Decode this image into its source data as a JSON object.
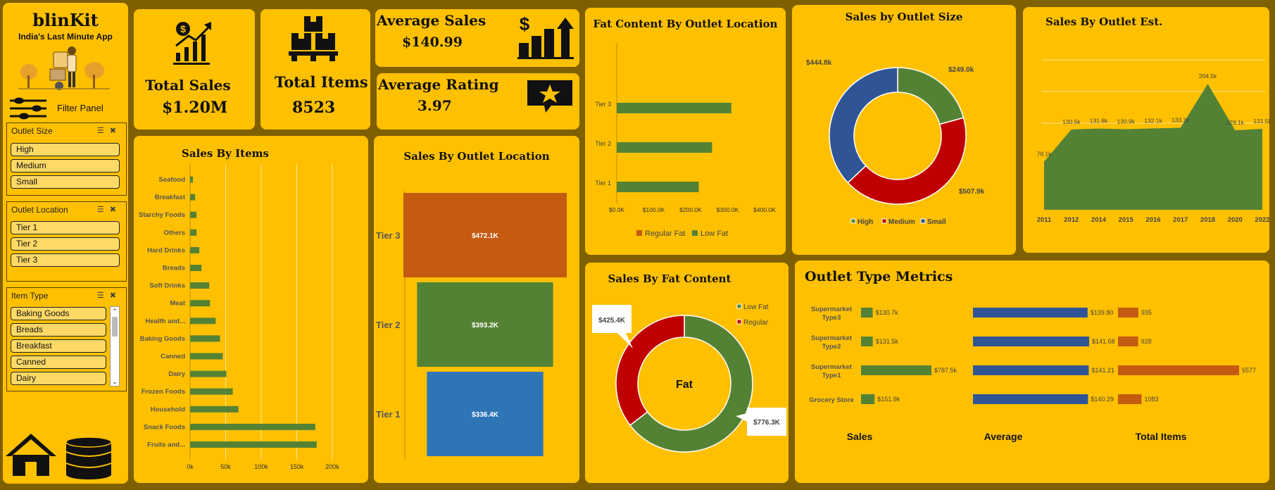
{
  "brand": {
    "name": "blinKit",
    "tagline": "India's Last Minute App"
  },
  "filter_panel_label": "Filter Panel",
  "slicers": [
    {
      "title": "Outlet Size",
      "items": [
        "High",
        "Medium",
        "Small"
      ]
    },
    {
      "title": "Outlet Location",
      "items": [
        "Tier 1",
        "Tier 2",
        "Tier 3"
      ]
    },
    {
      "title": "Item Type",
      "items": [
        "Baking Goods",
        "Breads",
        "Breakfast",
        "Canned",
        "Dairy"
      ]
    }
  ],
  "kpis": {
    "total_sales": {
      "label": "Total Sales",
      "value": "$1.20M"
    },
    "total_items": {
      "label": "Total Items",
      "value": "8523"
    },
    "average_sales": {
      "label": "Average Sales",
      "value": "$140.99"
    },
    "average_rating": {
      "label": "Average Rating",
      "value": "3.97"
    }
  },
  "icons": [
    "home-icon",
    "database-icon",
    "money-growth-icon",
    "boxes-icon",
    "dollar-bar-icon",
    "star-chat-icon",
    "filter-icon"
  ],
  "colors": {
    "background": "#7f6000",
    "card": "#ffc000",
    "green": "#548235",
    "orange": "#c55a11",
    "blue": "#2e75b6",
    "navy": "#2f5597",
    "red": "#c00000"
  },
  "chart_data": [
    {
      "id": "sales_by_items",
      "type": "bar",
      "title": "Sales By Items",
      "categories": [
        "Seafood",
        "Breakfast",
        "Starchy Foods",
        "Others",
        "Hard Drinks",
        "Breads",
        "Soft Drinks",
        "Meat",
        "Health and...",
        "Baking Goods",
        "Canned",
        "Dairy",
        "Frozen Foods",
        "Household",
        "Snack Foods",
        "Fruits and..."
      ],
      "values": [
        4,
        7,
        9,
        9,
        13,
        16,
        27,
        28,
        36,
        42,
        46,
        51,
        60,
        68,
        176,
        178
      ],
      "xticks": [
        "0k",
        "50k",
        "100k",
        "150k",
        "200k"
      ],
      "xlim": [
        0,
        200
      ],
      "grid": true
    },
    {
      "id": "sales_by_outlet_location",
      "type": "bar",
      "title": "Sales By Outlet Location",
      "categories": [
        "Tier 3",
        "Tier 2",
        "Tier 1"
      ],
      "values": [
        472.1,
        393.2,
        336.4
      ],
      "data_labels": [
        "$472.1K",
        "$393.2K",
        "$336.4K"
      ],
      "colors": [
        "#c55a11",
        "#548235",
        "#2e75b6"
      ]
    },
    {
      "id": "fat_content_by_outlet_location",
      "type": "bar",
      "title": "Fat Content By Outlet Location",
      "categories": [
        "Tier 3",
        "Tier 2",
        "Tier 1"
      ],
      "series": [
        {
          "name": "Regular Fat",
          "values": [
            0,
            0,
            0
          ]
        },
        {
          "name": "Low Fat",
          "values": [
            310,
            258,
            222
          ]
        }
      ],
      "xticks": [
        "$0.0K",
        "$100.0K",
        "$200.0K",
        "$300.0K",
        "$400.0K"
      ],
      "xlim": [
        0,
        400
      ],
      "legend": "bottom"
    },
    {
      "id": "sales_by_outlet_size",
      "type": "pie",
      "title": "Sales by Outlet Size",
      "categories": [
        "High",
        "Medium",
        "Small"
      ],
      "values": [
        249.0,
        507.9,
        444.8
      ],
      "data_labels": [
        "$249.0k",
        "$507.9k",
        "$444.8k"
      ],
      "colors": [
        "#548235",
        "#c00000",
        "#2f5597"
      ],
      "legend": "bottom"
    },
    {
      "id": "sales_by_outlet_est",
      "type": "area",
      "title": "Sales By Outlet Est.",
      "x": [
        "2011",
        "2012",
        "2014",
        "2015",
        "2016",
        "2017",
        "2018",
        "2020",
        "2022"
      ],
      "values": [
        78.1,
        130.5,
        131.8,
        130.9,
        132.1,
        133.1,
        204.5,
        129.1,
        131.5
      ],
      "data_labels": [
        "78.1k",
        "130.5k",
        "131.8k",
        "130.9k",
        "132.1k",
        "133.1k",
        "204.5k",
        "129.1k",
        "131.5k"
      ],
      "grid": true
    },
    {
      "id": "sales_by_fat_content",
      "type": "pie",
      "title": "Sales By Fat Content",
      "center_label": "Fat",
      "categories": [
        "Low Fat",
        "Regular"
      ],
      "values": [
        776.3,
        425.4
      ],
      "data_labels": [
        "$776.3K",
        "$425.4K"
      ],
      "colors": [
        "#548235",
        "#c00000"
      ],
      "legend": "top-right"
    },
    {
      "id": "outlet_type_metrics",
      "type": "table",
      "title": "Outlet Type Metrics",
      "categories": [
        "Supermarket Type3",
        "Supermarket Type2",
        "Supermarket Type1",
        "Grocery Store"
      ],
      "series": [
        {
          "name": "Sales",
          "values": [
            130.7,
            131.5,
            787.5,
            151.9
          ],
          "labels": [
            "$130.7k",
            "$131.5k",
            "$787.5k",
            "$151.9k"
          ],
          "color": "#548235"
        },
        {
          "name": "Average",
          "values": [
            139.8,
            141.68,
            141.21,
            140.29
          ],
          "labels": [
            "$139.80",
            "$141.68",
            "$141.21",
            "$140.29"
          ],
          "color": "#2f5597"
        },
        {
          "name": "Total Items",
          "values": [
            935,
            928,
            5577,
            1083
          ],
          "labels": [
            "935",
            "928",
            "5577",
            "1083"
          ],
          "color": "#c55a11"
        }
      ]
    }
  ]
}
